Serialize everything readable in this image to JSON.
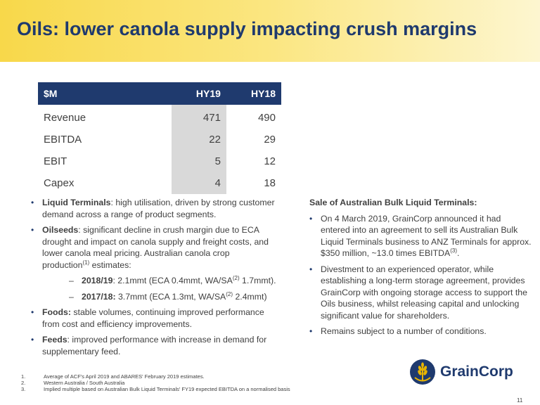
{
  "title": "Oils: lower canola supply impacting crush margins",
  "table": {
    "headers": [
      "$M",
      "HY19",
      "HY18"
    ],
    "rows": [
      [
        "Revenue",
        "471",
        "490"
      ],
      [
        "EBITDA",
        "22",
        "29"
      ],
      [
        "EBIT",
        "5",
        "12"
      ],
      [
        "Capex",
        "4",
        "18"
      ]
    ]
  },
  "left": {
    "b1_bold": "Liquid Terminals",
    "b1_text": ": high utilisation, driven by strong customer demand across a range of product segments.",
    "b2_bold": "Oilseeds",
    "b2_text": ": significant decline in crush margin due to ECA drought and impact on canola supply and freight costs, and lower canola meal pricing. Australian canola crop production",
    "b2_sup": "(1)",
    "b2_tail": " estimates:",
    "s1_bold": "2018/19",
    "s1_a": ": 2.1mmt (ECA 0.4mmt, WA/SA",
    "s1_sup": "(2)",
    "s1_b": " 1.7mmt).",
    "s2_bold": "2017/18:",
    "s2_a": " 3.7mmt (ECA 1.3mt, WA/SA",
    "s2_sup": "(2)",
    "s2_b": " 2.4mmt)",
    "b3_bold": "Foods:",
    "b3_text": " stable volumes, continuing improved performance from cost and efficiency improvements.",
    "b4_bold": "Feeds",
    "b4_text": ": improved performance with increase in demand for supplementary feed."
  },
  "right": {
    "heading": "Sale of Australian Bulk Liquid Terminals:",
    "b1_text": "On 4 March 2019, GrainCorp announced it had entered into an agreement to sell its Australian Bulk Liquid Terminals business to ANZ Terminals for approx. $350 million, ~13.0 times EBITDA",
    "b1_sup": "(3)",
    "b1_tail": ".",
    "b2_text": "Divestment to an experienced operator, while establishing a long-term storage agreement, provides GrainCorp with ongoing storage access to support the Oils business, whilst releasing capital and unlocking significant value for  shareholders.",
    "b3_text": "Remains subject to a number of conditions."
  },
  "footnotes": [
    {
      "num": "1.",
      "text": "Average of ACF's April 2019 and ABARES' February 2019 estimates."
    },
    {
      "num": "2.",
      "text": "Western Australia / South Australia"
    },
    {
      "num": "3.",
      "text": "Implied multiple based on Australian Bulk Liquid Terminals' FY19 expected EBITDA on a normalised basis"
    }
  ],
  "logo_text": "GrainCorp",
  "page_number": "11",
  "colors": {
    "navy": "#1f3a6e",
    "yellow": "#f8d84a",
    "gold": "#e8b400",
    "highlight": "#d9d9d9"
  },
  "icons": {
    "logo": "wheat-circle-icon"
  }
}
